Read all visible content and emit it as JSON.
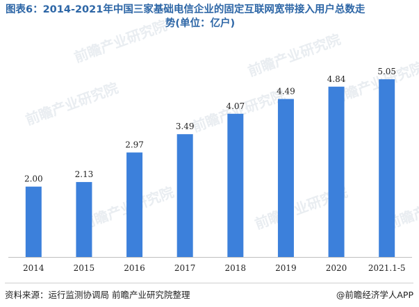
{
  "title_line1": "图表6：2014-2021年中国三家基础电信企业的固定互联网宽带接入用户总数走",
  "title_line2": "势(单位：亿户)",
  "watermark": "前瞻产业研究院",
  "chart_data": {
    "type": "bar",
    "categories": [
      "2014",
      "2015",
      "2016",
      "2017",
      "2018",
      "2019",
      "2020",
      "2021.1-5"
    ],
    "values": [
      2.0,
      2.13,
      2.97,
      3.49,
      4.07,
      4.49,
      4.84,
      5.05
    ],
    "value_labels": [
      "2.00",
      "2.13",
      "2.97",
      "3.49",
      "4.07",
      "4.49",
      "4.84",
      "5.05"
    ],
    "ylim": [
      0,
      6
    ],
    "bar_color": "#3c80db"
  },
  "footer": {
    "source": "资料来源：运行监测协调局 前瞻产业研究院整理",
    "brand": "@前瞻经济学人APP"
  }
}
